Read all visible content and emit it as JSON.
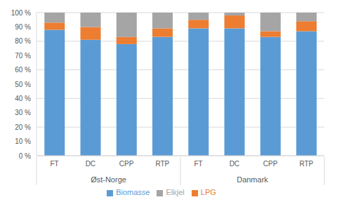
{
  "chart_data": {
    "type": "bar",
    "stacked": true,
    "grid": true,
    "legend": "bottom",
    "categories": [
      "FT",
      "DC",
      "CPP",
      "RTP",
      "FT",
      "DC",
      "CPP",
      "RTP"
    ],
    "category_groups": [
      "Øst-Norge",
      "Øst-Norge",
      "Øst-Norge",
      "Øst-Norge",
      "Danmark",
      "Danmark",
      "Danmark",
      "Danmark"
    ],
    "series": [
      {
        "name": "Biomasse",
        "color": "#5b9bd5",
        "values": [
          88,
          81,
          78,
          83,
          89,
          89,
          83,
          87
        ]
      },
      {
        "name": "LPG",
        "color": "#ed7d31",
        "values": [
          5,
          9,
          5,
          6,
          6,
          9,
          4,
          7
        ]
      },
      {
        "name": "Elkjel",
        "color": "#a5a5a5",
        "values": [
          7,
          10,
          17,
          11,
          5,
          2,
          13,
          6
        ]
      }
    ],
    "ylim": [
      0,
      100
    ],
    "yticks": [
      {
        "value": 0,
        "label": "0 %"
      },
      {
        "value": 10,
        "label": "10 %"
      },
      {
        "value": 20,
        "label": "20 %"
      },
      {
        "value": 30,
        "label": "30 %"
      },
      {
        "value": 40,
        "label": "40 %"
      },
      {
        "value": 50,
        "label": "50 %"
      },
      {
        "value": 60,
        "label": "60 %"
      },
      {
        "value": 70,
        "label": "70 %"
      },
      {
        "value": 80,
        "label": "80 %"
      },
      {
        "value": 90,
        "label": "90 %"
      },
      {
        "value": 100,
        "label": "100 %"
      }
    ]
  }
}
